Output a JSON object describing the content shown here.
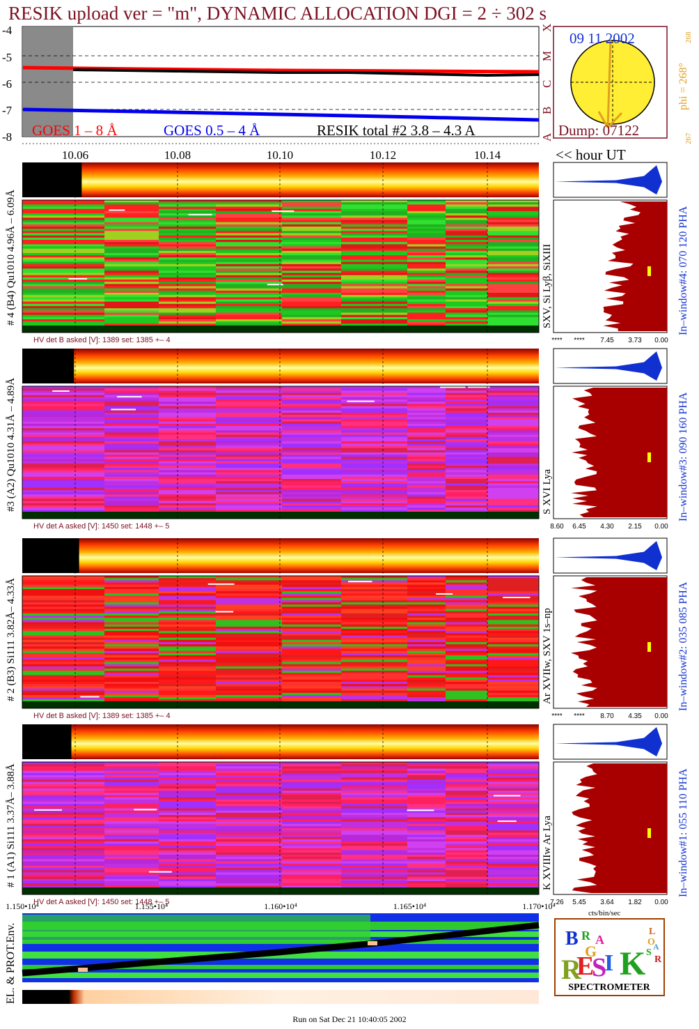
{
  "title": "RESIK upload ver = \"m\", DYNAMIC ALLOCATION  DGI =   2 ÷ 302 s",
  "footer": "Run on Sat Dec 21 10:40:05 2002",
  "colors": {
    "title": "#7a1020",
    "goes_long": "#ff0000",
    "goes_short": "#0000ee",
    "resik": "#000000",
    "spectrum_fill": "#a80000",
    "profile_fill": "#1030d0",
    "right_label": "#1030d0",
    "sun": "#ffee33",
    "phi": "#e0a020",
    "gray_block": "#8a8a8a"
  },
  "goes": {
    "legend_long": "GOES 1 – 8 Å",
    "legend_short": "GOES 0.5 – 4 Å",
    "legend_resik": "RESIK total #2  3.8 – 4.3 A",
    "y_ticks": [
      "-4",
      "-5",
      "-6",
      "-7",
      "-8"
    ],
    "class_letters": [
      "X",
      "M",
      "C",
      "B",
      "A"
    ],
    "hour_label": "<< hour UT"
  },
  "sun": {
    "date": "09 11 2002",
    "dump": "Dump: 07122",
    "phi": "phi = 268°",
    "phi_sub": "268",
    "phi_low": "267"
  },
  "time_ticks": [
    "10.06",
    "10.08",
    "10.10",
    "10.12",
    "10.14"
  ],
  "x_ticks": [
    "1.150•10⁴",
    "1.155•10⁴",
    "1.160•10⁴",
    "1.165•10⁴",
    "1.170•10⁴"
  ],
  "x_ticks_pos": [
    0.0,
    0.25,
    0.5,
    0.75,
    1.0
  ],
  "spectrum_axis_label": "cts/bin/sec",
  "channels": [
    {
      "id": "4",
      "left_label": "# 4 (B4) Qu1010 4.96Å – 6.09Å",
      "line_label": "SXV, Si Lyβ, SiXIII",
      "hv": "HV det B asked [V]:  1389 set:  1385 +–    4",
      "window": "In–window#4:  070 120 PHA",
      "spec_ticks": [
        "****",
        "****",
        "7.45",
        "3.73",
        "0.00"
      ],
      "palette": "green",
      "black_end": 0.115
    },
    {
      "id": "3",
      "left_label": "#3 (A2) Qu1010  4.31Å – 4.89Å",
      "line_label": "S XVI Lya",
      "hv": "HV det A asked [V]:  1450 set:  1448 +–    5",
      "window": "In–window#3:  090 160 PHA",
      "spec_ticks": [
        "8.60",
        "6.45",
        "4.30",
        "2.15",
        "0.00"
      ],
      "palette": "purple",
      "black_end": 0.1
    },
    {
      "id": "2",
      "left_label": "# 2 (B3) Si111  3.82Å– 4.33Å",
      "line_label": "Ar XVIIw, SXV 1s–np",
      "hv": "HV det B asked [V]:  1389 set:  1385 +–    4",
      "window": "In–window#2:  035 085 PHA",
      "spec_ticks": [
        "****",
        "****",
        "8.70",
        "4.35",
        "0.00"
      ],
      "palette": "red",
      "black_end": 0.11
    },
    {
      "id": "1",
      "left_label": "# 1 (A1) Si111  3.37Å– 3.88Å",
      "line_label": "K XVIIIw  Ar Lya",
      "hv": "HV det A asked [V]:  1450 set:  1448 +–    5",
      "window": "In–window#1:  055 110 PHA",
      "spec_ticks": [
        "7.26",
        "5.45",
        "3.64",
        "1.82",
        "0.00"
      ],
      "palette": "purple",
      "black_end": 0.095
    }
  ],
  "env_label": "EL. & PROT.Env.",
  "logo": {
    "letters": [
      "B",
      "R",
      "A",
      "G",
      "R",
      "E",
      "S",
      "I",
      "K",
      "S",
      "O",
      "L",
      "A",
      "R"
    ],
    "bottom": "SPECTROMETER"
  }
}
